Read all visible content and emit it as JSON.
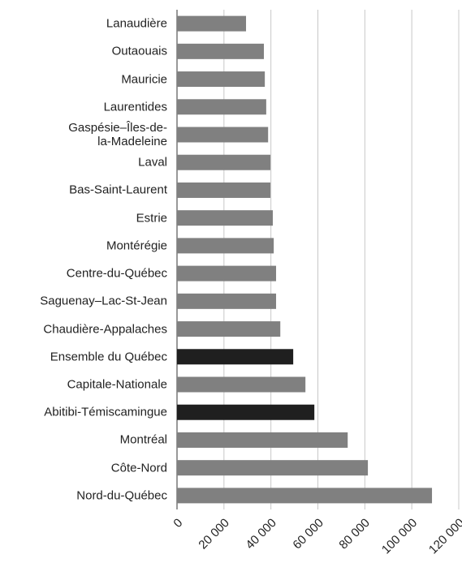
{
  "chart_data": {
    "type": "barh",
    "categories": [
      "Lanaudière",
      "Outaouais",
      "Mauricie",
      "Laurentides",
      "Gaspésie–Îles-de-\nla-Madeleine",
      "Laval",
      "Bas-Saint-Laurent",
      "Estrie",
      "Montérégie",
      "Centre-du-Québec",
      "Saguenay–Lac-St-Jean",
      "Chaudière-Appalaches",
      "Ensemble du Québec",
      "Capitale-Nationale",
      "Abitibi-Témiscamingue",
      "Montréal",
      "Côte-Nord",
      "Nord-du-Québec"
    ],
    "values": [
      29400,
      37000,
      37400,
      38000,
      38800,
      39800,
      39800,
      40800,
      41200,
      42200,
      42200,
      44000,
      49500,
      54700,
      58500,
      72700,
      81300,
      108600
    ],
    "colors": [
      "#808080",
      "#808080",
      "#808080",
      "#808080",
      "#808080",
      "#808080",
      "#808080",
      "#808080",
      "#808080",
      "#808080",
      "#808080",
      "#808080",
      "#1f1f1f",
      "#808080",
      "#1f1f1f",
      "#808080",
      "#808080",
      "#808080"
    ],
    "xlim": [
      0,
      120000
    ],
    "xticks": [
      0,
      {
        "value": 20000,
        "label": "20 000"
      },
      {
        "value": 40000,
        "label": "40 000"
      },
      {
        "value": 60000,
        "label": "60 000"
      },
      {
        "value": 80000,
        "label": "80 000"
      },
      {
        "value": 100000,
        "label": "100 000"
      },
      {
        "value": 120000,
        "label": "120 000"
      }
    ],
    "grid": true
  }
}
